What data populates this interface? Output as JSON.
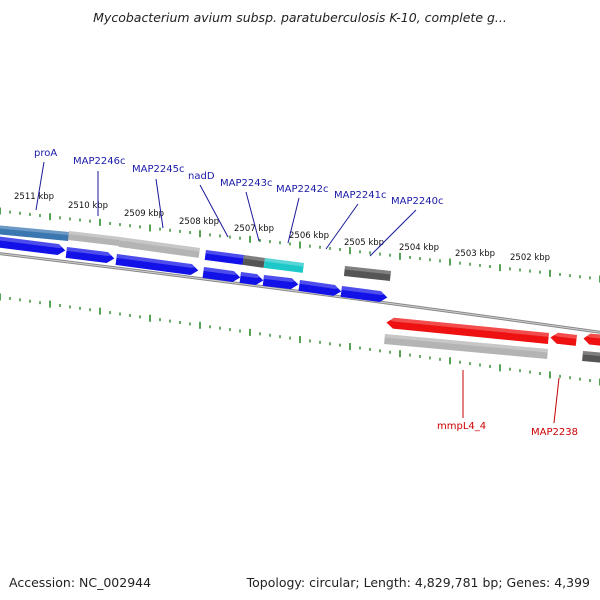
{
  "title": "Mycobacterium avium subsp. paratuberculosis K-10, complete g...",
  "footer": {
    "accession": "Accession: NC_002944",
    "summary": "Topology: circular; Length: 4,829,781 bp; Genes: 4,399"
  },
  "colors": {
    "forward_label": "#1a1aa8",
    "reverse_label": "#cc0000",
    "cds_forward": "#1212e8",
    "cds_reverse": "#ee1111",
    "gene_gray": "#b4b4b4",
    "gene_dark": "#555555",
    "teal": "#1ec8c8",
    "steel_blue": "#3a76b0",
    "tick": "#2a8a2a",
    "backbone": "#888888"
  },
  "ruler": {
    "kbp_labels": [
      "2511 kbp",
      "2510 kbp",
      "2509 kbp",
      "2508 kbp",
      "2507 kbp",
      "2506 kbp",
      "2505 kbp",
      "2504 kbp",
      "2503 kbp",
      "2502 kbp"
    ]
  },
  "genes": {
    "forward": [
      "proA",
      "MAP2246c",
      "MAP2245c",
      "nadD",
      "MAP2243c",
      "MAP2242c",
      "MAP2241c",
      "MAP2240c"
    ],
    "reverse": [
      "mmpL4_4",
      "MAP2238"
    ]
  }
}
